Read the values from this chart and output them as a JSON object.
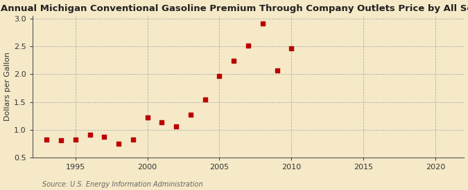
{
  "title": "Annual Michigan Conventional Gasoline Premium Through Company Outlets Price by All Sellers",
  "ylabel": "Dollars per Gallon",
  "source": "Source: U.S. Energy Information Administration",
  "background_color": "#f5e9c8",
  "years": [
    1993,
    1994,
    1995,
    1996,
    1997,
    1998,
    1999,
    2000,
    2001,
    2002,
    2003,
    2004,
    2005,
    2006,
    2007,
    2008,
    2009,
    2010
  ],
  "values": [
    0.83,
    0.82,
    0.83,
    0.92,
    0.88,
    0.75,
    0.83,
    1.22,
    1.14,
    1.06,
    1.27,
    1.54,
    1.97,
    2.24,
    2.51,
    2.91,
    2.06,
    2.46
  ],
  "marker_color": "#bb0000",
  "marker_size": 20,
  "xlim": [
    1992,
    2022
  ],
  "ylim": [
    0.5,
    3.05
  ],
  "xticks": [
    1995,
    2000,
    2005,
    2010,
    2015,
    2020
  ],
  "yticks": [
    0.5,
    1.0,
    1.5,
    2.0,
    2.5,
    3.0
  ],
  "title_fontsize": 9.5,
  "label_fontsize": 8,
  "tick_fontsize": 8,
  "source_fontsize": 7,
  "grid_color": "#aaaaaa",
  "spine_color": "#555555"
}
